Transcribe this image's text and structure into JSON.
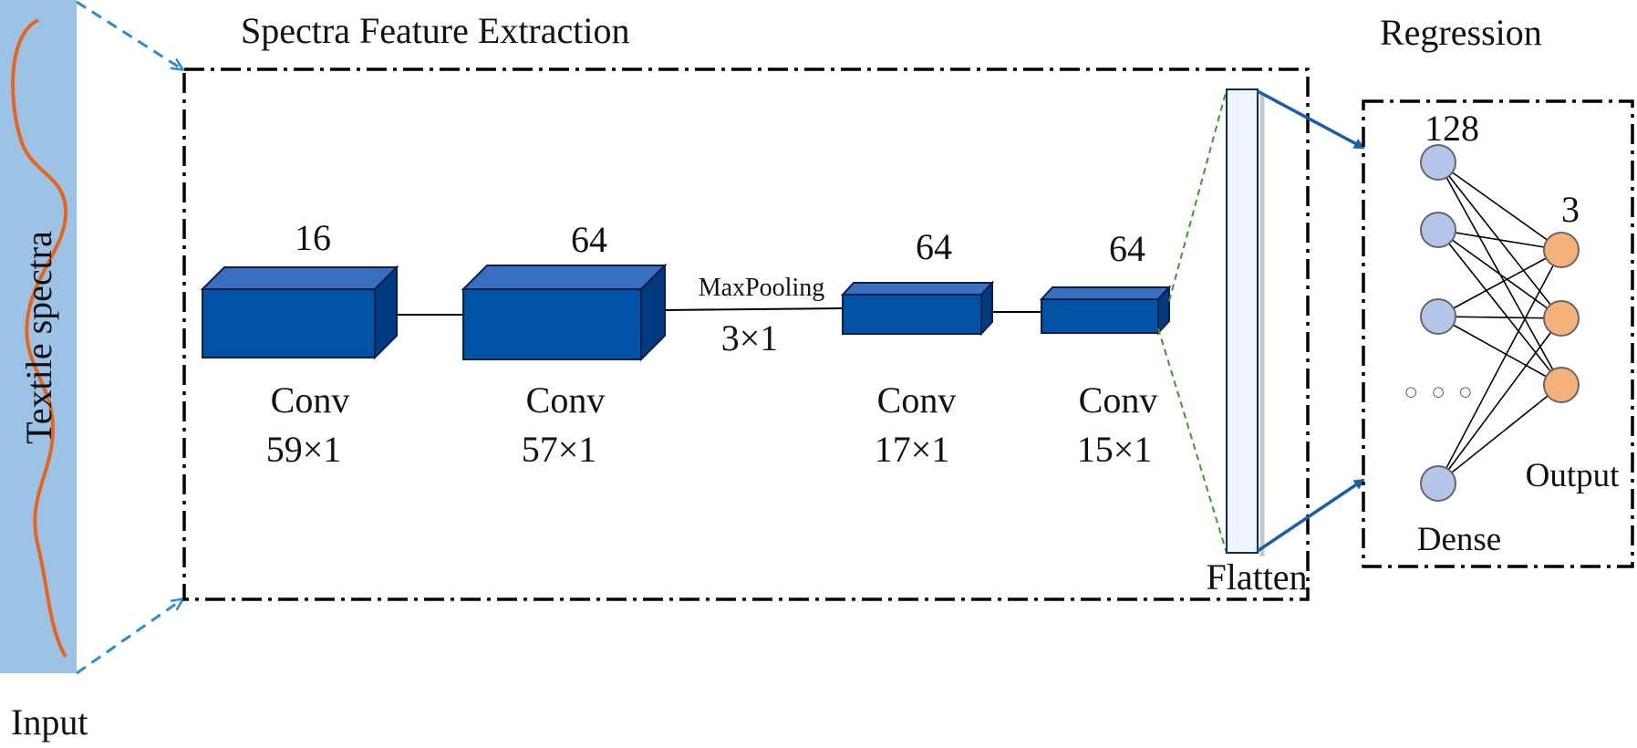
{
  "input": {
    "label": "Input",
    "spectrum_label": "Textile spectra"
  },
  "extraction": {
    "title": "Spectra Feature Extraction",
    "layers": [
      {
        "filters": "16",
        "name": "Conv",
        "size": "59×1"
      },
      {
        "filters": "64",
        "name": "Conv",
        "size": "57×1"
      },
      {
        "filters": "64",
        "name": "Conv",
        "size": "17×1"
      },
      {
        "filters": "64",
        "name": "Conv",
        "size": "15×1"
      }
    ],
    "pooling": {
      "name": "MaxPooling",
      "size": "3×1"
    },
    "flatten_label": "Flatten"
  },
  "regression": {
    "title": "Regression",
    "dense_units": "128",
    "dense_label": "Dense",
    "output_units": "3",
    "output_label": "Output",
    "ellipsis": "○ ○ ○"
  },
  "colors": {
    "input_bar": "#9cc3e6",
    "spectrum_curve": "#e8641b",
    "block_front": "#0052a6",
    "block_top": "#3a6fc0",
    "block_side": "#003b82",
    "block_stroke": "#0a1f4a",
    "dense_node": "#b4c6e7",
    "output_node": "#f4b17a",
    "flatten_fill": "#eef5fc",
    "flow_arrow": "#1a5ea8",
    "dashed_input": "#2e8ad0",
    "flatten_guide": "#3a9a2a"
  }
}
